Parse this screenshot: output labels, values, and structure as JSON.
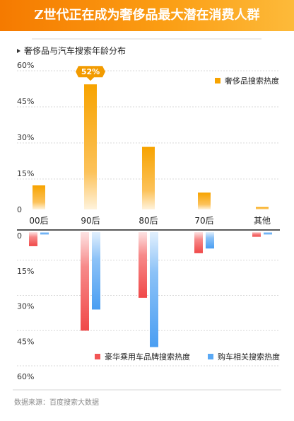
{
  "header": {
    "title": "Z世代正在成为奢侈品最大潜在消费人群"
  },
  "chart_data": {
    "type": "bar",
    "subtitle": "奢侈品与汽车搜索年龄分布",
    "categories": [
      "00后",
      "90后",
      "80后",
      "70后",
      "其他"
    ],
    "top_panel": {
      "ylim": [
        0,
        60
      ],
      "ticks": [
        "0",
        "15%",
        "30%",
        "45%",
        "60%"
      ],
      "tick_values": [
        0,
        15,
        30,
        45,
        60
      ],
      "series": [
        {
          "name": "奢侈品搜索热度",
          "color": "#f7a300",
          "values": [
            10,
            52,
            26,
            7,
            1
          ]
        }
      ],
      "callout": {
        "category": "90后",
        "text": "52%"
      }
    },
    "bottom_panel": {
      "ylim": [
        0,
        60
      ],
      "ticks": [
        "0",
        "15%",
        "30%",
        "45%",
        "60%"
      ],
      "tick_values": [
        0,
        15,
        30,
        45,
        60
      ],
      "series": [
        {
          "name": "豪华乘用车品牌搜索热度",
          "color": "#f25555",
          "values": [
            6,
            42,
            28,
            9,
            2
          ]
        },
        {
          "name": "购车相关搜索热度",
          "color": "#5aa9f5",
          "values": [
            1,
            33,
            49,
            7,
            1
          ]
        }
      ]
    },
    "grid": true
  },
  "footer": {
    "source": "数据来源：百度搜索大数据"
  }
}
